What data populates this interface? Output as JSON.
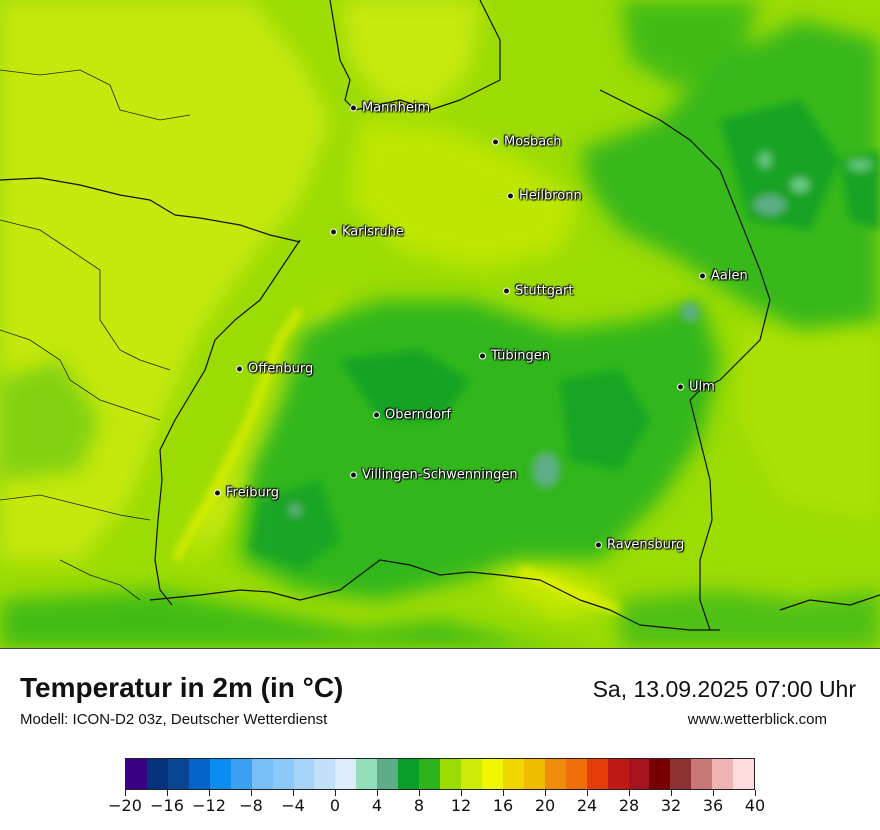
{
  "map": {
    "cities": [
      {
        "name": "Mannheim"
      },
      {
        "name": "Mosbach"
      },
      {
        "name": "Heilbronn"
      },
      {
        "name": "Karlsruhe"
      },
      {
        "name": "Stuttgart"
      },
      {
        "name": "Aalen"
      },
      {
        "name": "Tübingen"
      },
      {
        "name": "Offenburg"
      },
      {
        "name": "Ulm"
      },
      {
        "name": "Oberndorf"
      },
      {
        "name": "Villingen-Schwenningen"
      },
      {
        "name": "Freiburg"
      },
      {
        "name": "Ravensburg"
      }
    ]
  },
  "footer": {
    "title": "Temperatur in 2m (in °C)",
    "model": "Modell: ICON-D2 03z, Deutscher Wetterdienst",
    "valid_time": "Sa, 13.09.2025 07:00 Uhr",
    "website": "www.wetterblick.com"
  },
  "legend": {
    "colors": [
      "#3a0083",
      "#05327d",
      "#0a4591",
      "#0564c8",
      "#0a8cf0",
      "#3ca0f5",
      "#78bef8",
      "#8cc8f8",
      "#a6d3f8",
      "#c2e0f9",
      "#dcecfb",
      "#93dfb9",
      "#5fad86",
      "#0a9e28",
      "#2db41c",
      "#9cdc05",
      "#cceb08",
      "#f0f500",
      "#f0d700",
      "#f0bc00",
      "#f08c0a",
      "#f06e0a",
      "#e63c0a",
      "#be1914",
      "#a5141e",
      "#780000",
      "#8c3232",
      "#c87878",
      "#f0b4b4",
      "#ffdcdc"
    ],
    "tick_labels": [
      "−20",
      "−16",
      "−12",
      "−8",
      "−4",
      "0",
      "4",
      "8",
      "12",
      "16",
      "20",
      "24",
      "28",
      "32",
      "36",
      "40"
    ],
    "min": -20,
    "max": 40
  }
}
